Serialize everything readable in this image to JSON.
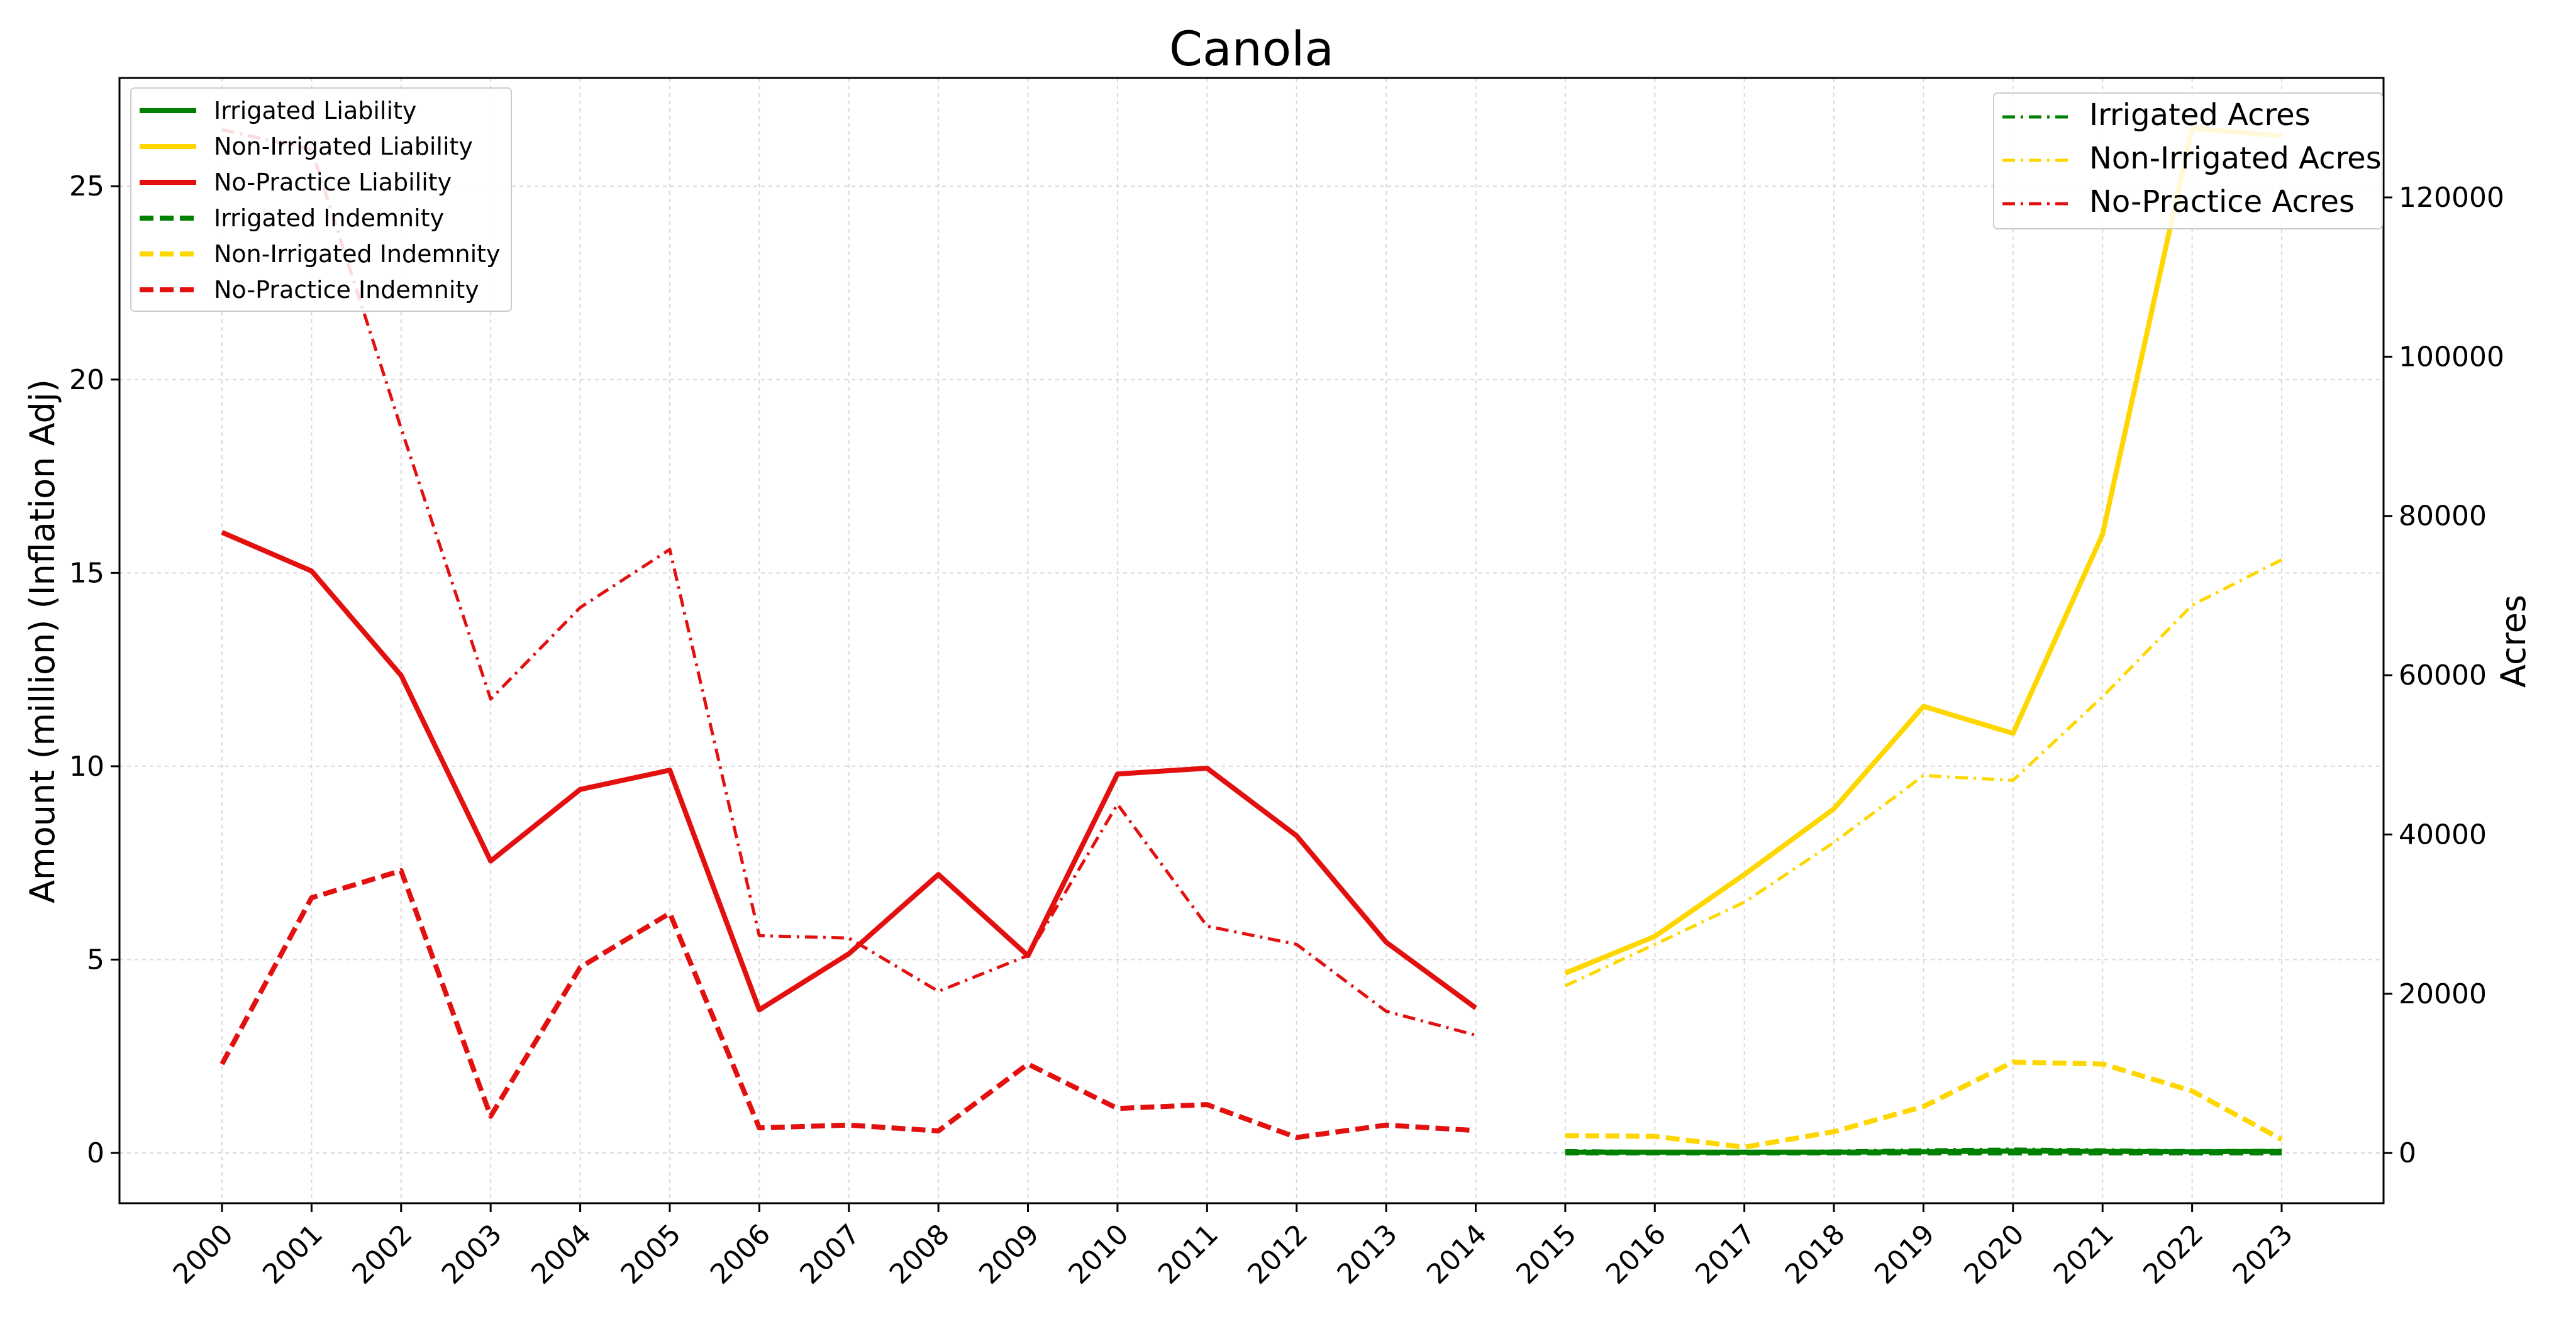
{
  "chart_data": {
    "type": "line",
    "title": "Canola",
    "ylabel": "Amount (million) (Inflation Adj)",
    "y2label": "Acres",
    "grid": true,
    "x": [
      "2000",
      "2001",
      "2002",
      "2003",
      "2004",
      "2005",
      "2006",
      "2007",
      "2008",
      "2009",
      "2010",
      "2011",
      "2012",
      "2013",
      "2014",
      "2015",
      "2016",
      "2017",
      "2018",
      "2019",
      "2020",
      "2021",
      "2022",
      "2023"
    ],
    "ylim": [
      -1.3,
      27.8
    ],
    "y2lim": [
      -6300,
      135000
    ],
    "yticks": [
      0,
      5,
      10,
      15,
      20,
      25
    ],
    "y2ticks": [
      0,
      20000,
      40000,
      60000,
      80000,
      100000,
      120000
    ],
    "legend_left_position": "upper-left",
    "legend_right_position": "upper-right",
    "series": [
      {
        "name": "Irrigated Liability",
        "axis": "left",
        "style": "solid",
        "color": "#008000",
        "values": [
          null,
          null,
          null,
          null,
          null,
          null,
          null,
          null,
          null,
          null,
          null,
          null,
          null,
          null,
          null,
          0.02,
          0.02,
          0.02,
          0.02,
          0.03,
          0.05,
          0.04,
          0.03,
          0.04
        ]
      },
      {
        "name": "Non-Irrigated Liability",
        "axis": "left",
        "style": "solid",
        "color": "#FFD700",
        "values": [
          null,
          null,
          null,
          null,
          null,
          null,
          null,
          null,
          null,
          null,
          null,
          null,
          null,
          null,
          null,
          4.65,
          5.6,
          7.2,
          8.9,
          11.55,
          10.85,
          16.0,
          26.5,
          26.3
        ]
      },
      {
        "name": "No-Practice Liability",
        "axis": "left",
        "style": "solid",
        "color": "#E31010",
        "values": [
          16.05,
          15.05,
          12.35,
          7.55,
          9.4,
          9.9,
          3.7,
          5.15,
          7.2,
          5.1,
          9.8,
          9.95,
          8.2,
          5.45,
          3.75,
          null,
          null,
          null,
          null,
          null,
          null,
          null,
          null,
          null
        ]
      },
      {
        "name": "Irrigated Indemnity",
        "axis": "left",
        "style": "dashed",
        "color": "#008000",
        "values": [
          null,
          null,
          null,
          null,
          null,
          null,
          null,
          null,
          null,
          null,
          null,
          null,
          null,
          null,
          null,
          0.0,
          0.0,
          0.0,
          0.0,
          0.0,
          0.0,
          0.0,
          0.0,
          0.0
        ]
      },
      {
        "name": "Non-Irrigated Indemnity",
        "axis": "left",
        "style": "dashed",
        "color": "#FFD700",
        "values": [
          null,
          null,
          null,
          null,
          null,
          null,
          null,
          null,
          null,
          null,
          null,
          null,
          null,
          null,
          null,
          0.45,
          0.43,
          0.15,
          0.55,
          1.2,
          2.35,
          2.3,
          1.6,
          0.35
        ]
      },
      {
        "name": "No-Practice Indemnity",
        "axis": "left",
        "style": "dashed",
        "color": "#E31010",
        "values": [
          2.3,
          6.6,
          7.3,
          0.95,
          4.8,
          6.2,
          0.65,
          0.72,
          0.57,
          2.3,
          1.15,
          1.25,
          0.4,
          0.72,
          0.58,
          null,
          null,
          null,
          null,
          null,
          null,
          null,
          null,
          null
        ]
      },
      {
        "name": "Irrigated Acres",
        "axis": "right",
        "style": "dashdot",
        "color": "#008000",
        "values": [
          null,
          null,
          null,
          null,
          null,
          null,
          null,
          null,
          null,
          null,
          null,
          null,
          null,
          null,
          null,
          300,
          200,
          150,
          250,
          400,
          500,
          400,
          300,
          350
        ]
      },
      {
        "name": "Non-Irrigated Acres",
        "axis": "right",
        "style": "dashdot",
        "color": "#FFD700",
        "values": [
          null,
          null,
          null,
          null,
          null,
          null,
          null,
          null,
          null,
          null,
          null,
          null,
          null,
          null,
          null,
          21000,
          26200,
          31500,
          39000,
          47400,
          46800,
          57300,
          68800,
          74500
        ]
      },
      {
        "name": "No-Practice Acres",
        "axis": "right",
        "style": "dashdot",
        "color": "#E31010",
        "values": [
          128500,
          126000,
          91000,
          57000,
          68500,
          75800,
          27300,
          27000,
          20300,
          24800,
          43800,
          28500,
          26200,
          17800,
          14800,
          null,
          null,
          null,
          null,
          null,
          null,
          null,
          null,
          null
        ]
      }
    ]
  }
}
